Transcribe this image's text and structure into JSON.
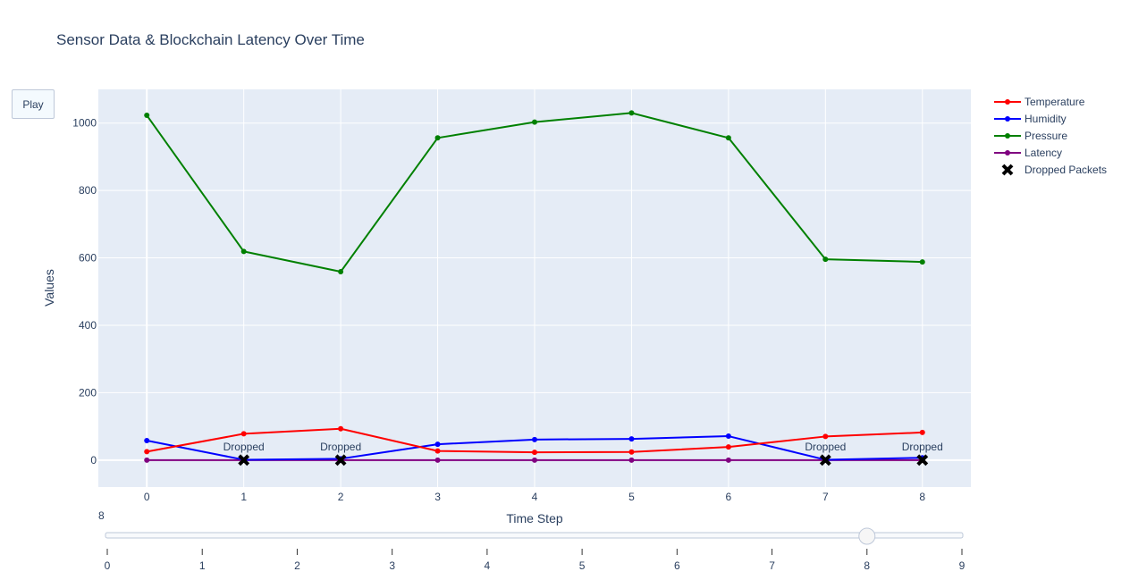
{
  "controls": {
    "play_label": "Play"
  },
  "slider": {
    "current_label": "8",
    "value": 8,
    "min": 0,
    "max": 9,
    "ticks": [
      "0",
      "1",
      "2",
      "3",
      "4",
      "5",
      "6",
      "7",
      "8",
      "9"
    ]
  },
  "chart_data": {
    "type": "line",
    "title": "Sensor Data & Blockchain Latency Over Time",
    "xlabel": "Time Step",
    "ylabel": "Values",
    "x": [
      0,
      1,
      2,
      3,
      4,
      5,
      6,
      7,
      8
    ],
    "xlim": [
      -0.5,
      8.5
    ],
    "ylim": [
      -80,
      1100
    ],
    "xticks": [
      0,
      1,
      2,
      3,
      4,
      5,
      6,
      7,
      8
    ],
    "yticks": [
      0,
      200,
      400,
      600,
      800,
      1000
    ],
    "grid": true,
    "legend_position": "top-right",
    "series": [
      {
        "name": "Temperature",
        "color": "#ff0000",
        "values": [
          25,
          78,
          93,
          27,
          23,
          24,
          39,
          70,
          82
        ]
      },
      {
        "name": "Humidity",
        "color": "#0000ff",
        "values": [
          58,
          1,
          4,
          47,
          61,
          63,
          71,
          1,
          7
        ]
      },
      {
        "name": "Pressure",
        "color": "#008000",
        "values": [
          1023,
          619,
          559,
          956,
          1003,
          1030,
          956,
          596,
          588
        ]
      },
      {
        "name": "Latency",
        "color": "#800080",
        "values": [
          0,
          0,
          0,
          0,
          0,
          0,
          0,
          0,
          0
        ]
      }
    ],
    "dropped_packets": {
      "name": "Dropped Packets",
      "color": "#000000",
      "marker": "x",
      "points": [
        {
          "x": 1,
          "y": 0,
          "label": "Dropped"
        },
        {
          "x": 2,
          "y": 0,
          "label": "Dropped"
        },
        {
          "x": 7,
          "y": 0,
          "label": "Dropped"
        },
        {
          "x": 8,
          "y": 0,
          "label": "Dropped"
        }
      ]
    }
  }
}
